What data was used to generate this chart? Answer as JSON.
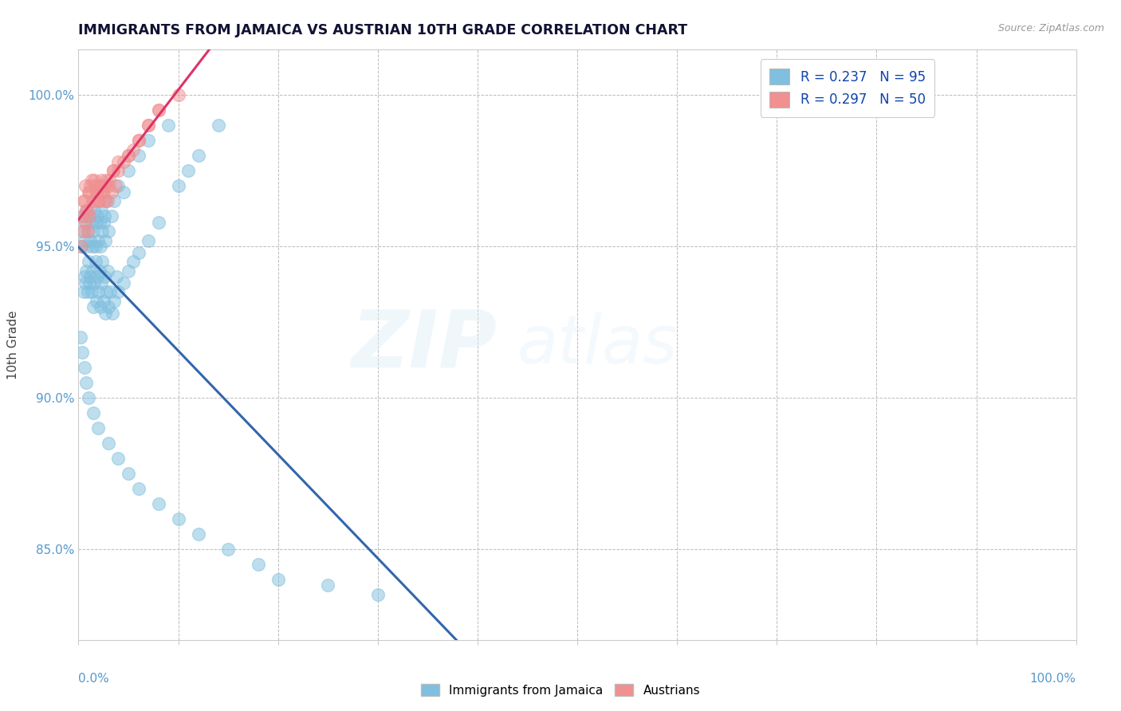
{
  "title": "IMMIGRANTS FROM JAMAICA VS AUSTRIAN 10TH GRADE CORRELATION CHART",
  "source": "Source: ZipAtlas.com",
  "ylabel": "10th Grade",
  "legend_blue_r": "R = 0.237",
  "legend_blue_n": "N = 95",
  "legend_pink_r": "R = 0.297",
  "legend_pink_n": "N = 50",
  "blue_color": "#7fbfdf",
  "pink_color": "#f09090",
  "blue_line_color": "#3366aa",
  "pink_line_color": "#dd3366",
  "axis_label_color": "#5599cc",
  "title_color": "#111133",
  "y_ticks": [
    85.0,
    90.0,
    95.0,
    100.0
  ],
  "seed": 12,
  "blue_x": [
    0.5,
    0.6,
    0.7,
    0.8,
    0.9,
    1.0,
    1.1,
    1.2,
    1.3,
    1.4,
    1.5,
    1.6,
    1.7,
    1.8,
    1.9,
    2.0,
    2.1,
    2.2,
    2.3,
    2.4,
    2.5,
    2.6,
    2.7,
    2.8,
    2.9,
    3.0,
    3.2,
    3.4,
    3.6,
    3.8,
    4.0,
    4.5,
    5.0,
    5.5,
    6.0,
    7.0,
    8.0,
    10.0,
    11.0,
    12.0,
    14.0,
    0.3,
    0.4,
    0.5,
    0.6,
    0.7,
    0.8,
    0.9,
    1.0,
    1.1,
    1.2,
    1.3,
    1.4,
    1.5,
    1.6,
    1.7,
    1.8,
    1.9,
    2.0,
    2.1,
    2.2,
    2.3,
    2.4,
    2.5,
    2.6,
    2.7,
    2.8,
    3.0,
    3.3,
    3.6,
    4.0,
    4.5,
    5.0,
    6.0,
    7.0,
    9.0,
    0.2,
    0.4,
    0.6,
    0.8,
    1.0,
    1.5,
    2.0,
    3.0,
    4.0,
    5.0,
    6.0,
    8.0,
    10.0,
    12.0,
    15.0,
    18.0,
    20.0,
    25.0,
    30.0
  ],
  "blue_y": [
    93.5,
    94.0,
    93.8,
    94.2,
    93.5,
    94.5,
    93.8,
    94.0,
    93.5,
    94.2,
    93.0,
    93.8,
    94.5,
    93.2,
    94.0,
    93.5,
    94.2,
    93.0,
    93.8,
    94.5,
    93.2,
    94.0,
    92.8,
    93.5,
    94.2,
    93.0,
    93.5,
    92.8,
    93.2,
    94.0,
    93.5,
    93.8,
    94.2,
    94.5,
    94.8,
    95.2,
    95.8,
    97.0,
    97.5,
    98.0,
    99.0,
    95.0,
    95.5,
    96.0,
    95.2,
    95.8,
    96.2,
    95.0,
    95.5,
    96.0,
    95.2,
    95.8,
    95.0,
    95.5,
    96.2,
    95.0,
    95.8,
    96.0,
    95.2,
    95.8,
    95.0,
    96.2,
    95.5,
    95.8,
    96.0,
    95.2,
    96.5,
    95.5,
    96.0,
    96.5,
    97.0,
    96.8,
    97.5,
    98.0,
    98.5,
    99.0,
    92.0,
    91.5,
    91.0,
    90.5,
    90.0,
    89.5,
    89.0,
    88.5,
    88.0,
    87.5,
    87.0,
    86.5,
    86.0,
    85.5,
    85.0,
    84.5,
    84.0,
    83.8,
    83.5
  ],
  "pink_x": [
    0.5,
    0.7,
    0.9,
    1.1,
    1.3,
    1.5,
    1.7,
    1.9,
    2.1,
    2.3,
    2.5,
    2.7,
    2.9,
    3.1,
    3.3,
    3.5,
    3.7,
    4.0,
    4.5,
    5.0,
    5.5,
    6.0,
    7.0,
    8.0,
    10.0,
    0.4,
    0.6,
    0.8,
    1.0,
    1.2,
    1.4,
    1.6,
    1.8,
    2.0,
    2.2,
    2.4,
    2.6,
    2.8,
    3.0,
    3.5,
    4.0,
    5.0,
    6.0,
    7.0,
    8.0,
    0.3,
    0.5,
    0.7,
    0.9,
    1.1
  ],
  "pink_y": [
    96.5,
    97.0,
    96.2,
    96.8,
    97.2,
    96.5,
    97.0,
    96.8,
    96.5,
    97.2,
    96.8,
    97.0,
    96.5,
    97.2,
    96.8,
    97.5,
    97.0,
    97.5,
    97.8,
    98.0,
    98.2,
    98.5,
    99.0,
    99.5,
    100.0,
    96.0,
    96.5,
    96.2,
    96.8,
    97.0,
    96.5,
    97.2,
    96.8,
    96.5,
    97.0,
    96.8,
    96.5,
    97.2,
    97.0,
    97.5,
    97.8,
    98.0,
    98.5,
    99.0,
    99.5,
    95.0,
    95.5,
    95.8,
    95.5,
    96.0
  ]
}
